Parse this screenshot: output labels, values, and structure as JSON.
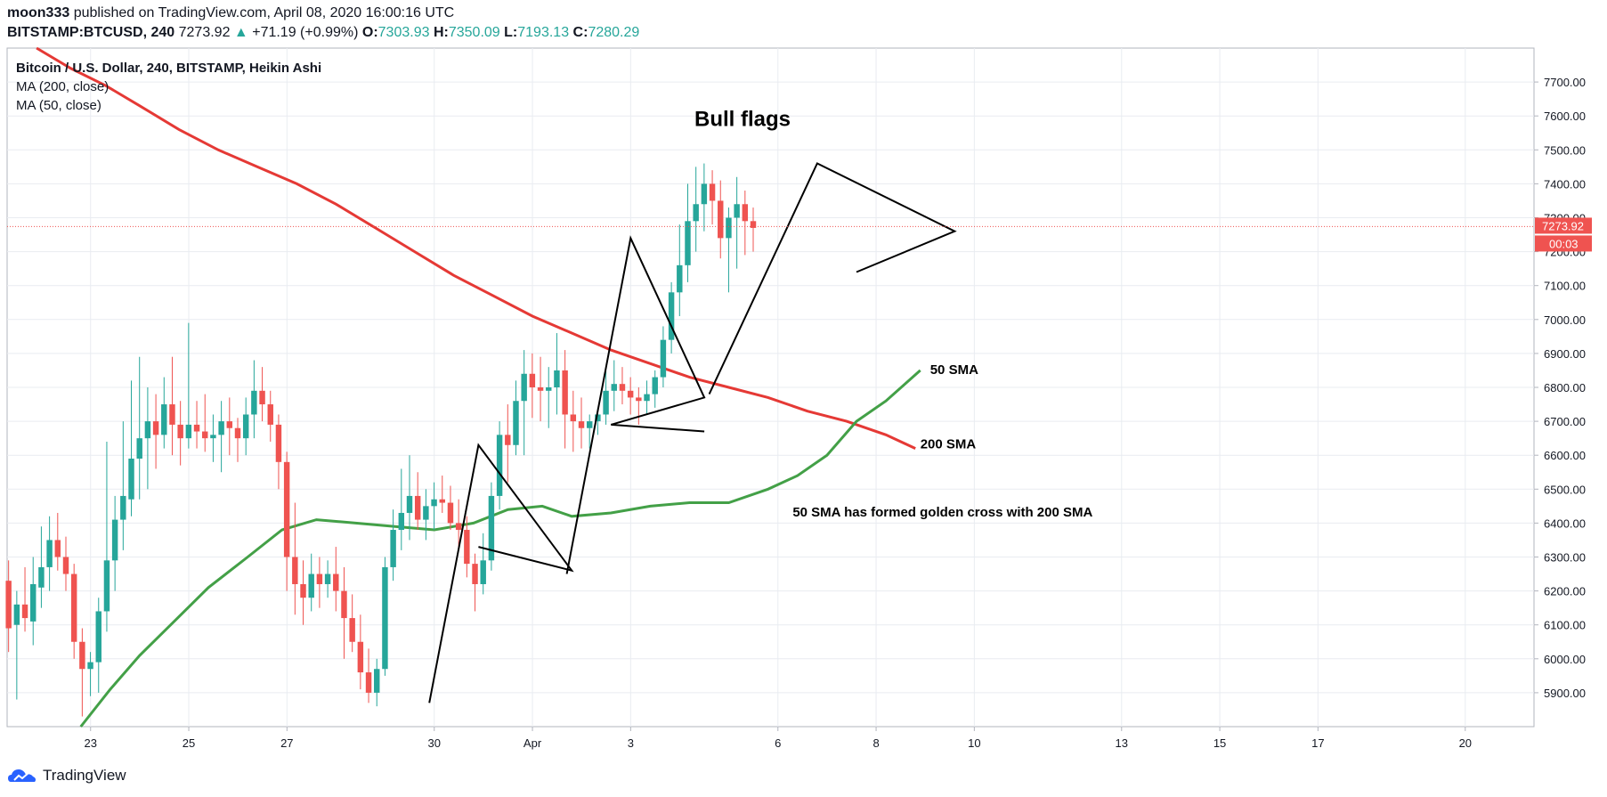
{
  "header": {
    "author": "moon333",
    "published_text": "published on TradingView.com, April 08, 2020 16:00:16 UTC",
    "symbol": "BITSTAMP:BTCUSD, 240",
    "last": "7273.92",
    "change": "+71.19 (+0.99%)",
    "o_label": "O:",
    "o_value": "7303.93",
    "h_label": "H:",
    "h_value": "7350.09",
    "l_label": "L:",
    "l_value": "7193.13",
    "c_label": "C:",
    "c_value": "7280.29"
  },
  "legend": {
    "title": "Bitcoin / U.S. Dollar, 240, BITSTAMP, Heikin Ashi",
    "ma200": "MA (200, close)",
    "ma50": "MA (50, close)"
  },
  "footer": {
    "brand": "TradingView"
  },
  "colors": {
    "up": "#26a69a",
    "down": "#ef5350",
    "ma200": "#e53935",
    "ma50": "#43a047",
    "grid": "#e9ecf1",
    "text": "#131722"
  },
  "chart_data": {
    "type": "candlestick",
    "title": "Bull flags",
    "ylim": [
      5800,
      7800
    ],
    "y_ticks": [
      "7700.00",
      "7600.00",
      "7500.00",
      "7400.00",
      "7300.00",
      "7200.00",
      "7100.00",
      "7000.00",
      "6900.00",
      "6800.00",
      "6700.00",
      "6600.00",
      "6500.00",
      "6400.00",
      "6300.00",
      "6200.00",
      "6100.00",
      "6000.00",
      "5900.00"
    ],
    "x_ticks": [
      {
        "label": "23",
        "day": 23
      },
      {
        "label": "25",
        "day": 25
      },
      {
        "label": "27",
        "day": 27
      },
      {
        "label": "30",
        "day": 30
      },
      {
        "label": "Apr",
        "day": 32
      },
      {
        "label": "3",
        "day": 34
      },
      {
        "label": "6",
        "day": 37
      },
      {
        "label": "8",
        "day": 39
      },
      {
        "label": "10",
        "day": 41
      },
      {
        "label": "13",
        "day": 44
      },
      {
        "label": "15",
        "day": 46
      },
      {
        "label": "17",
        "day": 48
      },
      {
        "label": "20",
        "day": 51
      }
    ],
    "day_range": [
      21.3,
      52.4
    ],
    "candles_start_day": 21.33,
    "bars_per_day": 6,
    "candles": [
      [
        6230,
        6290,
        6020,
        6090
      ],
      [
        6100,
        6200,
        5880,
        6160
      ],
      [
        6160,
        6270,
        6080,
        6120
      ],
      [
        6110,
        6300,
        6040,
        6220
      ],
      [
        6210,
        6390,
        6150,
        6270
      ],
      [
        6270,
        6420,
        6200,
        6350
      ],
      [
        6350,
        6430,
        6260,
        6300
      ],
      [
        6300,
        6360,
        6200,
        6250
      ],
      [
        6250,
        6280,
        6000,
        6050
      ],
      [
        6050,
        6090,
        5830,
        5970
      ],
      [
        5970,
        6020,
        5890,
        5990
      ],
      [
        5990,
        6180,
        5900,
        6140
      ],
      [
        6140,
        6640,
        6080,
        6290
      ],
      [
        6290,
        6480,
        6200,
        6410
      ],
      [
        6410,
        6700,
        6320,
        6480
      ],
      [
        6470,
        6820,
        6420,
        6590
      ],
      [
        6590,
        6890,
        6470,
        6650
      ],
      [
        6650,
        6800,
        6500,
        6700
      ],
      [
        6700,
        6780,
        6560,
        6660
      ],
      [
        6660,
        6830,
        6620,
        6750
      ],
      [
        6750,
        6890,
        6600,
        6690
      ],
      [
        6690,
        6760,
        6570,
        6650
      ],
      [
        6650,
        6990,
        6620,
        6690
      ],
      [
        6690,
        6760,
        6620,
        6670
      ],
      [
        6670,
        6780,
        6610,
        6650
      ],
      [
        6650,
        6720,
        6580,
        6660
      ],
      [
        6660,
        6760,
        6550,
        6700
      ],
      [
        6700,
        6770,
        6600,
        6680
      ],
      [
        6680,
        6710,
        6580,
        6650
      ],
      [
        6650,
        6770,
        6600,
        6720
      ],
      [
        6720,
        6880,
        6650,
        6790
      ],
      [
        6790,
        6860,
        6700,
        6750
      ],
      [
        6750,
        6790,
        6640,
        6690
      ],
      [
        6690,
        6720,
        6500,
        6580
      ],
      [
        6580,
        6610,
        6200,
        6300
      ],
      [
        6300,
        6460,
        6130,
        6220
      ],
      [
        6220,
        6290,
        6100,
        6180
      ],
      [
        6180,
        6310,
        6140,
        6250
      ],
      [
        6250,
        6300,
        6150,
        6220
      ],
      [
        6220,
        6290,
        6180,
        6250
      ],
      [
        6250,
        6330,
        6140,
        6200
      ],
      [
        6200,
        6270,
        6000,
        6120
      ],
      [
        6120,
        6190,
        6020,
        6050
      ],
      [
        6050,
        6130,
        5910,
        5960
      ],
      [
        5960,
        6030,
        5870,
        5900
      ],
      [
        5900,
        6000,
        5860,
        5970
      ],
      [
        5970,
        6300,
        5950,
        6270
      ],
      [
        6270,
        6440,
        6230,
        6380
      ],
      [
        6380,
        6560,
        6320,
        6430
      ],
      [
        6430,
        6600,
        6350,
        6480
      ],
      [
        6480,
        6550,
        6380,
        6410
      ],
      [
        6410,
        6500,
        6350,
        6450
      ],
      [
        6450,
        6520,
        6380,
        6470
      ],
      [
        6470,
        6540,
        6430,
        6460
      ],
      [
        6460,
        6510,
        6380,
        6400
      ],
      [
        6400,
        6470,
        6330,
        6380
      ],
      [
        6380,
        6420,
        6240,
        6280
      ],
      [
        6280,
        6310,
        6140,
        6220
      ],
      [
        6220,
        6370,
        6190,
        6290
      ],
      [
        6290,
        6520,
        6260,
        6480
      ],
      [
        6480,
        6700,
        6440,
        6660
      ],
      [
        6660,
        6750,
        6520,
        6630
      ],
      [
        6630,
        6820,
        6600,
        6760
      ],
      [
        6760,
        6910,
        6600,
        6840
      ],
      [
        6840,
        6900,
        6710,
        6800
      ],
      [
        6800,
        6890,
        6700,
        6790
      ],
      [
        6790,
        6860,
        6680,
        6800
      ],
      [
        6800,
        6960,
        6720,
        6850
      ],
      [
        6850,
        6910,
        6620,
        6720
      ],
      [
        6720,
        6790,
        6610,
        6700
      ],
      [
        6700,
        6770,
        6620,
        6680
      ],
      [
        6680,
        6720,
        6620,
        6700
      ],
      [
        6700,
        6740,
        6660,
        6720
      ],
      [
        6720,
        6850,
        6690,
        6790
      ],
      [
        6790,
        6880,
        6730,
        6810
      ],
      [
        6810,
        6860,
        6750,
        6790
      ],
      [
        6790,
        6830,
        6720,
        6770
      ],
      [
        6770,
        6800,
        6690,
        6760
      ],
      [
        6760,
        6820,
        6720,
        6780
      ],
      [
        6780,
        6850,
        6740,
        6830
      ],
      [
        6830,
        6980,
        6800,
        6940
      ],
      [
        6940,
        7110,
        6900,
        7080
      ],
      [
        7080,
        7280,
        7010,
        7160
      ],
      [
        7160,
        7400,
        7110,
        7290
      ],
      [
        7290,
        7450,
        7200,
        7340
      ],
      [
        7340,
        7460,
        7260,
        7400
      ],
      [
        7400,
        7440,
        7280,
        7350
      ],
      [
        7350,
        7410,
        7180,
        7240
      ],
      [
        7240,
        7330,
        7080,
        7300
      ],
      [
        7300,
        7420,
        7150,
        7340
      ],
      [
        7340,
        7380,
        7190,
        7290
      ],
      [
        7290,
        7330,
        7200,
        7270
      ]
    ],
    "ma200": [
      [
        21.9,
        7800
      ],
      [
        22.6,
        7740
      ],
      [
        23.3,
        7690
      ],
      [
        24.0,
        7630
      ],
      [
        24.8,
        7560
      ],
      [
        25.6,
        7500
      ],
      [
        26.4,
        7450
      ],
      [
        27.2,
        7400
      ],
      [
        28.0,
        7340
      ],
      [
        28.8,
        7270
      ],
      [
        29.6,
        7200
      ],
      [
        30.4,
        7130
      ],
      [
        31.2,
        7070
      ],
      [
        32.0,
        7010
      ],
      [
        32.8,
        6960
      ],
      [
        33.6,
        6910
      ],
      [
        34.4,
        6870
      ],
      [
        35.2,
        6830
      ],
      [
        36.0,
        6800
      ],
      [
        36.8,
        6770
      ],
      [
        37.6,
        6730
      ],
      [
        38.4,
        6700
      ],
      [
        39.2,
        6660
      ],
      [
        39.8,
        6620
      ]
    ],
    "ma50": [
      [
        22.8,
        5800
      ],
      [
        23.4,
        5910
      ],
      [
        24.0,
        6010
      ],
      [
        24.7,
        6110
      ],
      [
        25.4,
        6210
      ],
      [
        26.2,
        6300
      ],
      [
        26.9,
        6380
      ],
      [
        27.6,
        6410
      ],
      [
        28.4,
        6400
      ],
      [
        29.2,
        6390
      ],
      [
        30.0,
        6380
      ],
      [
        30.8,
        6400
      ],
      [
        31.5,
        6440
      ],
      [
        32.2,
        6450
      ],
      [
        32.8,
        6420
      ],
      [
        33.6,
        6430
      ],
      [
        34.4,
        6450
      ],
      [
        35.2,
        6460
      ],
      [
        36.0,
        6460
      ],
      [
        36.8,
        6500
      ],
      [
        37.4,
        6540
      ],
      [
        38.0,
        6600
      ],
      [
        38.6,
        6700
      ],
      [
        39.2,
        6760
      ],
      [
        39.9,
        6850
      ]
    ],
    "annotations": [
      {
        "text": "50 SMA",
        "day": 40.1,
        "price": 6840
      },
      {
        "text": "200 SMA",
        "day": 39.9,
        "price": 6620
      },
      {
        "text": "50 SMA has formed golden cross with 200 SMA",
        "day": 37.3,
        "price": 6420
      },
      {
        "text": "Bull flags",
        "day": 35.3,
        "price": 7570
      }
    ],
    "flags": [
      [
        [
          29.9,
          5870
        ],
        [
          30.9,
          6630
        ],
        [
          32.8,
          6260
        ],
        [
          30.9,
          6330
        ]
      ],
      [
        [
          32.7,
          6250
        ],
        [
          34.0,
          7240
        ],
        [
          35.5,
          6770
        ],
        [
          33.6,
          6690
        ],
        [
          35.5,
          6670
        ]
      ],
      [
        [
          35.6,
          6780
        ],
        [
          37.8,
          7460
        ],
        [
          40.6,
          7260
        ],
        [
          38.6,
          7140
        ]
      ]
    ],
    "last_price": "7273.92",
    "countdown": "00:03"
  }
}
